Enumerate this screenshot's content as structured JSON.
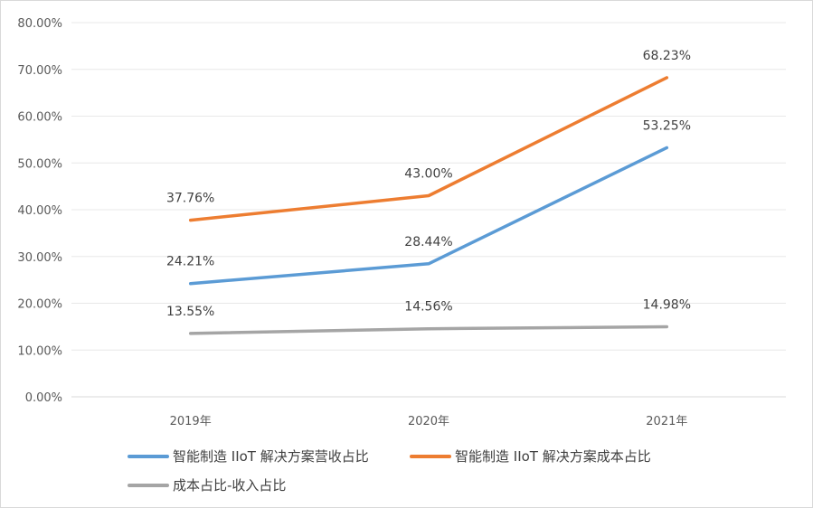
{
  "chart_data": {
    "type": "line",
    "title": "",
    "xlabel": "",
    "ylabel": "",
    "categories": [
      "2019年",
      "2020年",
      "2021年"
    ],
    "ylim": [
      0,
      80
    ],
    "yticks": [
      "0.00%",
      "10.00%",
      "20.00%",
      "30.00%",
      "40.00%",
      "50.00%",
      "60.00%",
      "70.00%",
      "80.00%"
    ],
    "grid": true,
    "legend_position": "bottom",
    "series": [
      {
        "name": "智能制造 IIoT 解决方案营收占比",
        "color": "#5b9bd5",
        "values": [
          24.21,
          28.44,
          53.25
        ],
        "labels": [
          "24.21%",
          "28.44%",
          "53.25%"
        ]
      },
      {
        "name": "智能制造 IIoT 解决方案成本占比",
        "color": "#ed7d31",
        "values": [
          37.76,
          43.0,
          68.23
        ],
        "labels": [
          "37.76%",
          "43.00%",
          "68.23%"
        ]
      },
      {
        "name": "成本占比-收入占比",
        "color": "#a5a5a5",
        "values": [
          13.55,
          14.56,
          14.98
        ],
        "labels": [
          "13.55%",
          "14.56%",
          "14.98%"
        ]
      }
    ]
  }
}
